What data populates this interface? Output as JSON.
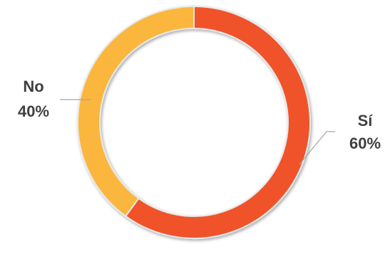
{
  "chart_data": {
    "type": "pie",
    "style": "donut",
    "title": "",
    "slices": [
      {
        "label": "Sí",
        "value": 60,
        "value_label": "60%",
        "color": "#f0522a"
      },
      {
        "label": "No",
        "value": 40,
        "value_label": "40%",
        "color": "#fbb63c"
      }
    ],
    "legend": "none"
  }
}
